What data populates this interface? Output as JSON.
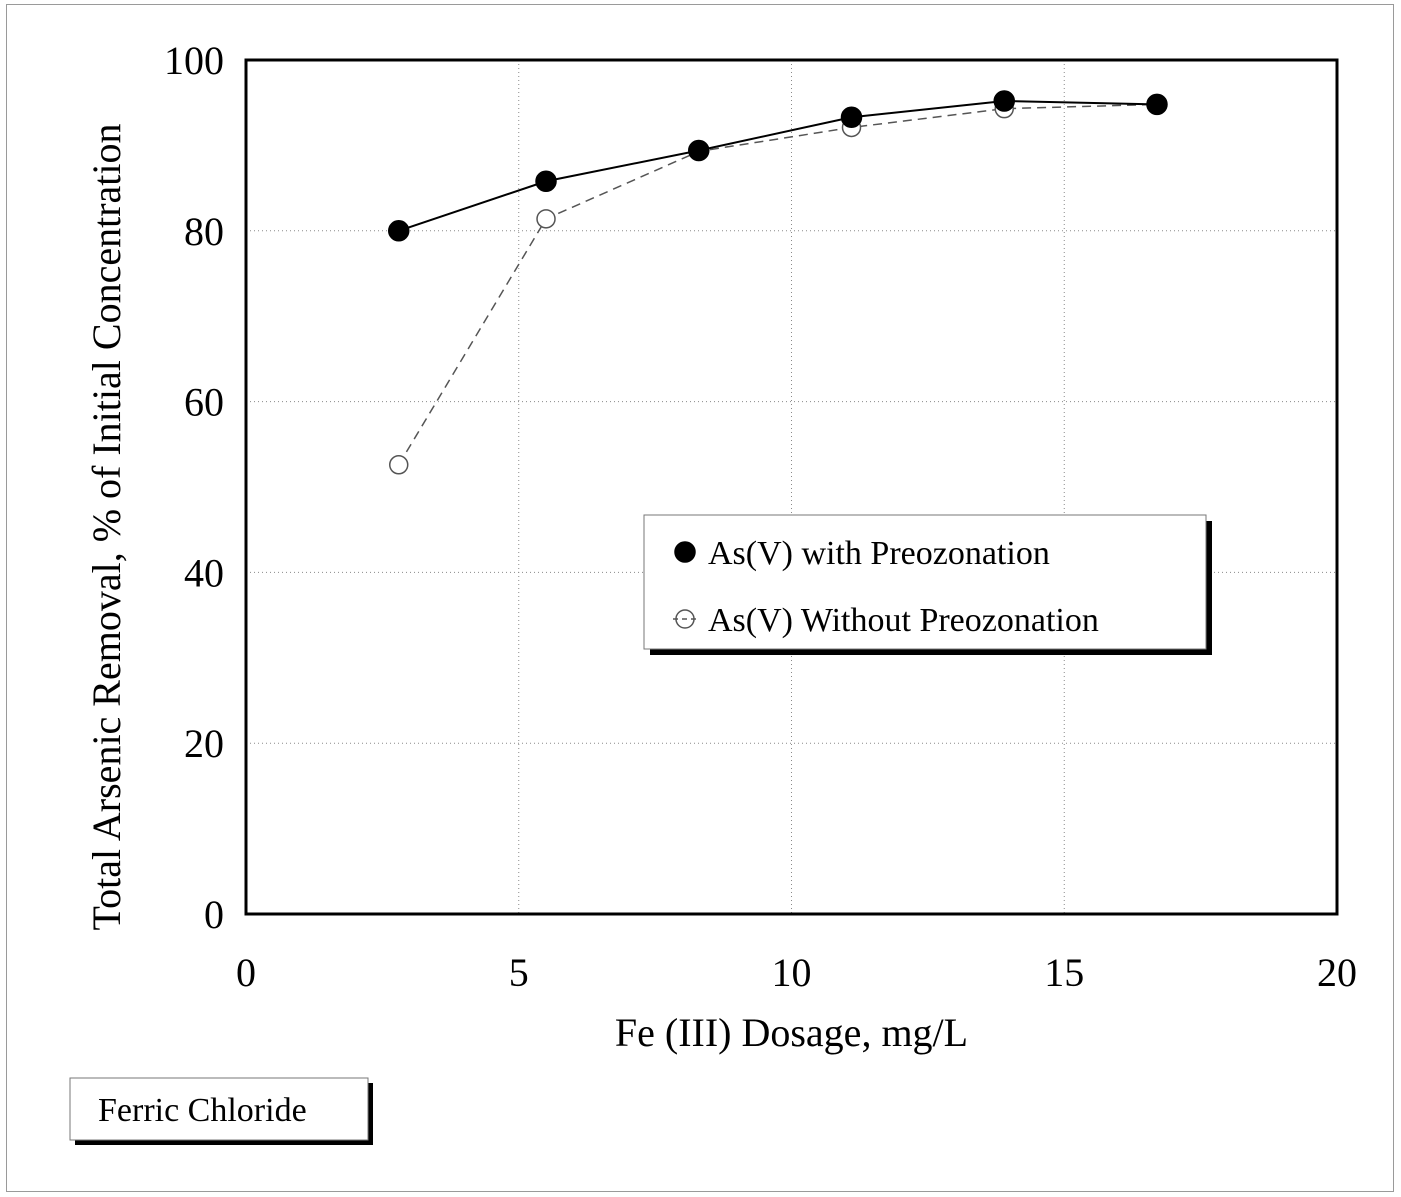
{
  "chart_data": {
    "type": "line",
    "xlabel": "Fe (III) Dosage, mg/L",
    "ylabel": "Total Arsenic Removal, % of Initial Concentration",
    "xlim": [
      0,
      20
    ],
    "ylim": [
      0,
      100
    ],
    "xticks": [
      0,
      5,
      10,
      15,
      20
    ],
    "yticks": [
      0,
      20,
      40,
      60,
      80,
      100
    ],
    "xtick_labels": [
      "0",
      "5",
      "10",
      "15",
      "20"
    ],
    "ytick_labels": [
      "0",
      "20",
      "40",
      "60",
      "80",
      "100"
    ],
    "grid": true,
    "legend_position": "center-right",
    "series": [
      {
        "name": "As(V) with Preozonation",
        "marker": "filled-circle",
        "line_style": "solid",
        "color": "#000000",
        "x": [
          2.8,
          5.5,
          8.3,
          11.1,
          13.9,
          16.7
        ],
        "y": [
          80,
          85.8,
          89.4,
          93.3,
          95.2,
          94.8
        ]
      },
      {
        "name": "As(V) Without Preozonation",
        "marker": "open-circle",
        "line_style": "dashed",
        "color": "#555555",
        "x": [
          2.8,
          5.5,
          8.3,
          11.1,
          13.9,
          16.7
        ],
        "y": [
          52.6,
          81.4,
          89.3,
          92.1,
          94.3,
          94.8
        ]
      }
    ]
  },
  "note": {
    "label": "Ferric Chloride"
  }
}
